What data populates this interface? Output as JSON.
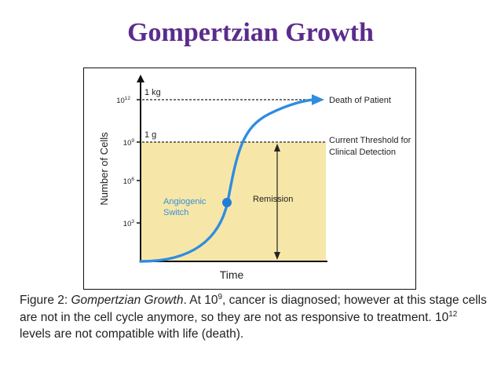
{
  "title": "Gompertzian Growth",
  "colors": {
    "title": "#5b2c8c",
    "curve": "#2e8de0",
    "shade": "#f6e7a8",
    "dot": "#1f7ed8",
    "angio_text": "#3a8fd6"
  },
  "figure": {
    "y_axis_label": "Number of Cells",
    "x_axis_label": "Time",
    "y_ticks": [
      {
        "base": "10",
        "exp": "3"
      },
      {
        "base": "10",
        "exp": "6"
      },
      {
        "base": "10",
        "exp": "9"
      },
      {
        "base": "10",
        "exp": "12"
      }
    ],
    "level_labels": {
      "upper": "1 kg",
      "lower": "1 g"
    },
    "right_labels": {
      "death": "Death of Patient",
      "threshold_line1": "Current Threshold for",
      "threshold_line2": "Clinical Detection"
    },
    "angiogenic_line1": "Angiogenic",
    "angiogenic_line2": "Switch",
    "remission": "Remission",
    "dot_icon": "filled-circle-icon",
    "arrow_icon": "arrowhead-icon"
  },
  "caption": {
    "fig": "Figure 2: ",
    "name": "Gompertzian Growth",
    "a": ". At 10",
    "exp1": "9",
    "b": ", cancer is diagnosed; however at this stage cells are not in the cell cycle anymore, so they are not as responsive to treatment. 10",
    "exp2": "12",
    "c": " levels are not compatible with life (death)."
  }
}
